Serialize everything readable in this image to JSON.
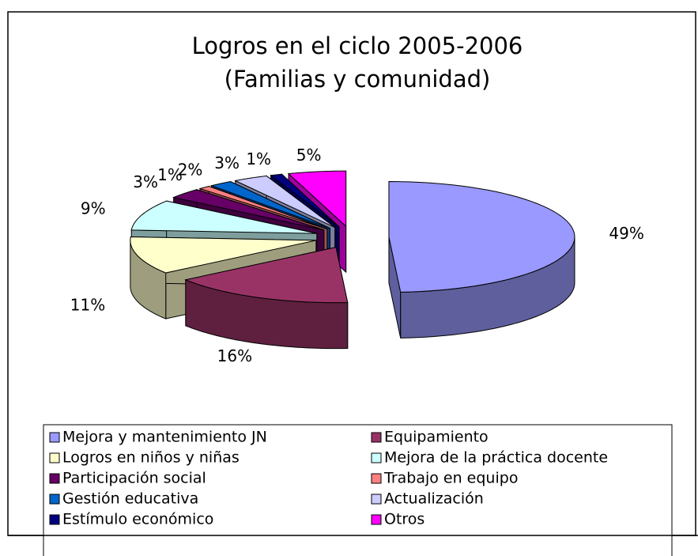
{
  "chart_data": {
    "type": "pie3d",
    "title": [
      "Logros en el ciclo 2005-2006",
      "(Familias y comunidad)"
    ],
    "categories": [
      "Mejora y mantenimiento JN",
      "Equipamiento",
      "Logros en niños y niñas",
      "Mejora de la práctica docente",
      "Participación social",
      "Trabajo en equipo",
      "Gestión educativa",
      "Actualización",
      "Estímulo económico",
      "Otros"
    ],
    "values": [
      49,
      16,
      11,
      9,
      3,
      1,
      2,
      3,
      1,
      5
    ],
    "value_labels": [
      "49%",
      "16%",
      "11%",
      "9%",
      "3%",
      "1%",
      "2%",
      "3%",
      "1%",
      "5%"
    ],
    "colors": [
      "#9999ff",
      "#993366",
      "#ffffcc",
      "#ccffff",
      "#660066",
      "#ff8080",
      "#0066cc",
      "#ccccff",
      "#000080",
      "#ff00ff"
    ],
    "legend": "bottom"
  }
}
